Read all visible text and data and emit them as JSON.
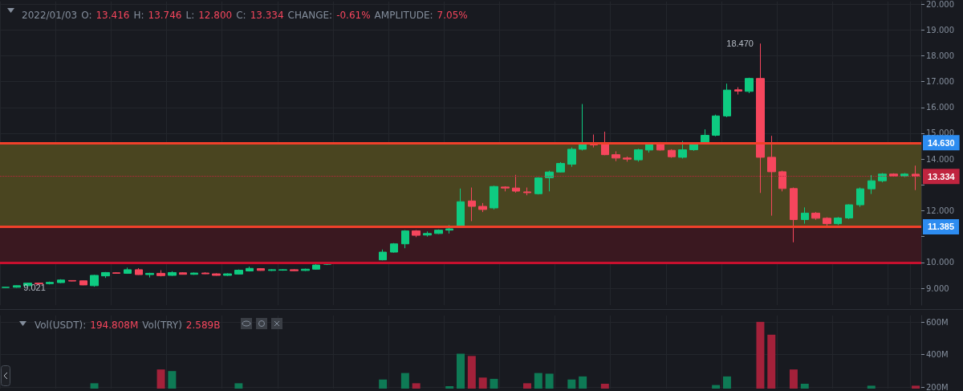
{
  "chart_data": [
    {
      "type": "candlestick",
      "title": "2022/01/03 O: 13.416 H: 13.746 L: 12.800 C: 13.334 CHANGE: -0.61% AMPLITUDE: 7.05%",
      "categories": [
        null,
        null,
        null,
        null,
        null,
        null,
        null,
        null,
        null,
        null,
        null,
        null,
        null,
        null,
        null,
        null,
        null,
        null,
        null,
        null,
        null,
        null,
        null,
        null,
        null,
        null,
        null,
        null,
        null,
        null,
        null,
        null,
        null,
        null,
        null,
        null,
        null,
        null,
        null,
        null,
        null,
        null,
        null,
        null,
        null,
        null,
        null,
        null,
        null,
        null,
        null,
        null,
        null,
        null,
        null,
        null,
        null,
        null,
        null,
        null,
        null,
        null,
        null,
        null,
        null,
        null,
        null,
        null,
        null,
        null,
        null,
        null,
        null,
        null,
        null,
        null,
        null,
        null,
        null,
        null,
        null,
        null,
        null
      ],
      "ohlc": [
        [
          9.03,
          9.05,
          9.025,
          9.04
        ],
        [
          9.04,
          9.11,
          9.021,
          9.1
        ],
        [
          9.1,
          9.22,
          9.08,
          9.2
        ],
        [
          9.2,
          9.22,
          9.16,
          9.17
        ],
        [
          9.18,
          9.26,
          9.15,
          9.23
        ],
        [
          9.22,
          9.35,
          9.2,
          9.32
        ],
        [
          9.3,
          9.31,
          9.27,
          9.28
        ],
        [
          9.29,
          9.3,
          9.12,
          9.13
        ],
        [
          9.1,
          9.52,
          9.06,
          9.5
        ],
        [
          9.48,
          9.63,
          9.4,
          9.61
        ],
        [
          9.6,
          9.62,
          9.57,
          9.58
        ],
        [
          9.58,
          9.8,
          9.56,
          9.72
        ],
        [
          9.72,
          9.78,
          9.52,
          9.53
        ],
        [
          9.53,
          9.6,
          9.42,
          9.58
        ],
        [
          9.58,
          9.7,
          9.46,
          9.49
        ],
        [
          9.5,
          9.66,
          9.48,
          9.61
        ],
        [
          9.6,
          9.62,
          9.53,
          9.54
        ],
        [
          9.54,
          9.61,
          9.52,
          9.59
        ],
        [
          9.59,
          9.62,
          9.55,
          9.56
        ],
        [
          9.56,
          9.58,
          9.49,
          9.5
        ],
        [
          9.5,
          9.58,
          9.48,
          9.56
        ],
        [
          9.55,
          9.73,
          9.53,
          9.7
        ],
        [
          9.67,
          9.84,
          9.65,
          9.77
        ],
        [
          9.76,
          9.78,
          9.68,
          9.69
        ],
        [
          9.69,
          9.74,
          9.67,
          9.72
        ],
        [
          9.7,
          9.74,
          9.68,
          9.72
        ],
        [
          9.72,
          9.74,
          9.67,
          9.68
        ],
        [
          9.69,
          9.76,
          9.67,
          9.74
        ],
        [
          9.74,
          9.93,
          9.72,
          9.9
        ],
        [
          9.93,
          10.0,
          9.9,
          9.96
        ],
        null,
        null,
        null,
        null,
        [
          10.1,
          10.5,
          10.08,
          10.4
        ],
        [
          10.4,
          10.75,
          10.38,
          10.72
        ],
        [
          10.72,
          11.25,
          10.55,
          11.22
        ],
        [
          11.22,
          11.25,
          10.98,
          11.05
        ],
        [
          11.06,
          11.2,
          11.0,
          11.12
        ],
        [
          11.12,
          11.28,
          11.1,
          11.25
        ],
        [
          11.25,
          11.45,
          11.12,
          11.3
        ],
        [
          11.35,
          12.86,
          11.35,
          12.35
        ],
        [
          12.38,
          12.9,
          11.6,
          12.17
        ],
        [
          12.17,
          12.3,
          11.95,
          12.05
        ],
        [
          12.11,
          12.97,
          12.05,
          12.94
        ],
        [
          12.92,
          12.95,
          12.75,
          12.88
        ],
        [
          12.88,
          13.39,
          12.7,
          12.76
        ],
        [
          12.73,
          12.9,
          12.6,
          12.7
        ],
        [
          12.66,
          13.3,
          12.63,
          13.27
        ],
        [
          13.28,
          13.55,
          12.75,
          13.5
        ],
        [
          13.5,
          13.88,
          13.48,
          13.83
        ],
        [
          13.8,
          14.45,
          13.7,
          14.38
        ],
        [
          14.38,
          16.13,
          14.33,
          14.57
        ],
        [
          14.6,
          14.95,
          14.45,
          14.55
        ],
        [
          14.58,
          15.06,
          14.15,
          14.17
        ],
        [
          14.17,
          14.3,
          13.92,
          14.04
        ],
        [
          14.04,
          14.1,
          13.9,
          14.0
        ],
        [
          13.97,
          14.4,
          13.9,
          14.36
        ],
        [
          14.35,
          14.65,
          14.25,
          14.57
        ],
        [
          14.58,
          14.66,
          14.33,
          14.35
        ],
        [
          14.34,
          14.38,
          14.05,
          14.09
        ],
        [
          14.07,
          14.7,
          14.02,
          14.36
        ],
        [
          14.36,
          14.65,
          14.32,
          14.57
        ],
        [
          14.65,
          15.15,
          14.6,
          14.92
        ],
        [
          14.92,
          15.72,
          14.88,
          15.67
        ],
        [
          15.67,
          16.92,
          15.62,
          16.67
        ],
        [
          16.68,
          16.78,
          16.5,
          16.63
        ],
        [
          16.62,
          17.15,
          16.55,
          17.12
        ],
        [
          17.12,
          18.47,
          12.69,
          14.07
        ],
        [
          14.07,
          14.9,
          11.81,
          13.51
        ],
        [
          13.51,
          13.55,
          12.75,
          12.86
        ],
        [
          12.86,
          12.9,
          10.78,
          11.66
        ],
        [
          11.66,
          12.13,
          11.5,
          11.91
        ],
        [
          11.91,
          11.95,
          11.65,
          11.71
        ],
        [
          11.71,
          11.75,
          11.4,
          11.5
        ],
        [
          11.5,
          11.76,
          11.45,
          11.72
        ],
        [
          11.72,
          12.25,
          11.68,
          12.23
        ],
        [
          12.23,
          12.9,
          12.15,
          12.85
        ],
        [
          12.85,
          13.38,
          12.65,
          13.16
        ],
        [
          13.16,
          13.46,
          13.1,
          13.42
        ],
        [
          13.42,
          13.45,
          13.32,
          13.34
        ],
        [
          13.34,
          13.46,
          13.3,
          13.42
        ],
        [
          13.416,
          13.746,
          12.8,
          13.334
        ]
      ],
      "colors": [
        "#0ecb81",
        "#0ecb81",
        "#0ecb81",
        "#f6465d",
        "#0ecb81",
        "#0ecb81",
        "#f6465d",
        "#f6465d",
        "#0ecb81",
        "#0ecb81",
        "#f6465d",
        "#0ecb81",
        "#f6465d",
        "#0ecb81",
        "#f6465d",
        "#0ecb81",
        "#f6465d",
        "#0ecb81",
        "#f6465d",
        "#f6465d",
        "#0ecb81",
        "#0ecb81",
        "#0ecb81",
        "#f6465d",
        "#0ecb81",
        "#0ecb81",
        "#f6465d",
        "#0ecb81",
        "#0ecb81",
        "#0ecb81",
        null,
        null,
        null,
        null,
        "#0ecb81",
        "#0ecb81",
        "#0ecb81",
        "#f6465d",
        "#0ecb81",
        "#0ecb81",
        "#0ecb81",
        "#0ecb81",
        "#f6465d",
        "#f6465d",
        "#0ecb81",
        "#f6465d",
        "#f6465d",
        "#f6465d",
        "#0ecb81",
        "#0ecb81",
        "#0ecb81",
        "#0ecb81",
        "#0ecb81",
        "#f6465d",
        "#f6465d",
        "#f6465d",
        "#f6465d",
        "#0ecb81",
        "#0ecb81",
        "#f6465d",
        "#f6465d",
        "#0ecb81",
        "#0ecb81",
        "#0ecb81",
        "#0ecb81",
        "#0ecb81",
        "#f6465d",
        "#0ecb81",
        "#f6465d",
        "#f6465d",
        "#f6465d",
        "#f6465d",
        "#0ecb81",
        "#f6465d",
        "#f6465d",
        "#0ecb81",
        "#0ecb81",
        "#0ecb81",
        "#0ecb81",
        "#0ecb81",
        "#f6465d",
        "#0ecb81",
        "#f6465d"
      ],
      "ylim": [
        8.35,
        20.1
      ],
      "yticks": [
        {
          "value": 9,
          "label": "9.000"
        },
        {
          "value": 10,
          "label": "10.000"
        },
        {
          "value": 11,
          "label": null
        },
        {
          "value": 12,
          "label": "12.000"
        },
        {
          "value": 13,
          "label": null
        },
        {
          "value": 14,
          "label": "14.000"
        },
        {
          "value": 15,
          "label": "15.000"
        },
        {
          "value": 16,
          "label": "16.000"
        },
        {
          "value": 17,
          "label": "17.000"
        },
        {
          "value": 18,
          "label": "18.000"
        },
        {
          "value": 19,
          "label": "19.000"
        },
        {
          "value": 20,
          "label": "20.000"
        }
      ],
      "bands": [
        {
          "axis": "y",
          "from": 11.385,
          "to": 14.63,
          "color": "#4a4520"
        },
        {
          "axis": "y",
          "from": 10,
          "to": 11.385,
          "color": "#3a1820"
        }
      ],
      "ref_lines": [
        {
          "axis": "y",
          "value": 14.63,
          "label": "14.630",
          "color": "#f0402a",
          "line_style": "solid"
        },
        {
          "axis": "y",
          "value": 11.385,
          "label": "11.385",
          "color": "#f0402a",
          "line_style": "solid"
        },
        {
          "axis": "y",
          "value": 10,
          "label": null,
          "color": "#c8102e",
          "line_style": "solid"
        },
        {
          "axis": "y",
          "value": 13.334,
          "label": "13.334",
          "color": "#c0243f",
          "line_style": "dotted"
        }
      ],
      "annotations": [
        "18.470",
        "9.021"
      ],
      "grid": true,
      "tick_labels": "y"
    },
    {
      "type": "bar",
      "title": "Vol(USDT): 194.808M Vol(TRY) 2.589B",
      "categories": [
        null,
        null,
        null,
        null,
        null,
        null,
        null,
        null,
        null,
        null,
        null,
        null,
        null,
        null,
        null,
        null,
        null,
        null,
        null,
        null,
        null,
        null,
        null,
        null,
        null,
        null,
        null,
        null,
        null,
        null,
        null,
        null,
        null,
        null,
        null,
        null,
        null,
        null,
        null,
        null,
        null,
        null,
        null,
        null,
        null,
        null,
        null,
        null,
        null,
        null,
        null,
        null,
        null,
        null,
        null,
        null,
        null,
        null,
        null,
        null,
        null,
        null,
        null,
        null,
        null,
        null,
        null,
        null,
        null,
        null,
        null,
        null,
        null,
        null,
        null,
        null,
        null,
        null,
        null,
        null,
        null,
        null,
        null
      ],
      "values": [
        null,
        null,
        null,
        null,
        null,
        null,
        null,
        null,
        223,
        null,
        null,
        null,
        null,
        null,
        308,
        298,
        null,
        null,
        null,
        null,
        null,
        223,
        null,
        null,
        null,
        null,
        null,
        null,
        null,
        null,
        null,
        null,
        null,
        null,
        246,
        null,
        286,
        223,
        null,
        null,
        205,
        405,
        391,
        258,
        250,
        null,
        null,
        223,
        286,
        282,
        null,
        246,
        265,
        null,
        220,
        null,
        null,
        null,
        null,
        null,
        null,
        null,
        null,
        null,
        212,
        265,
        null,
        null,
        601,
        522,
        null,
        308,
        220,
        null,
        null,
        null,
        null,
        null,
        208,
        null,
        null,
        null,
        208
      ],
      "colors": [
        "#0e7a55",
        "#0e7a55",
        "#0e7a55",
        "#a3213a",
        "#0e7a55",
        "#0e7a55",
        "#a3213a",
        "#a3213a",
        "#0e7a55",
        "#0e7a55",
        "#a3213a",
        "#0e7a55",
        "#a3213a",
        "#0e7a55",
        "#a3213a",
        "#0e7a55",
        "#a3213a",
        "#0e7a55",
        "#a3213a",
        "#a3213a",
        "#0e7a55",
        "#0e7a55",
        "#0e7a55",
        "#a3213a",
        "#0e7a55",
        "#0e7a55",
        "#a3213a",
        "#0e7a55",
        "#0e7a55",
        "#0e7a55",
        "#0e7a55",
        "#0e7a55",
        "#0e7a55",
        "#0e7a55",
        "#0e7a55",
        "#0e7a55",
        "#0e7a55",
        "#a3213a",
        "#0e7a55",
        "#0e7a55",
        "#0e7a55",
        "#0e7a55",
        "#a3213a",
        "#a3213a",
        "#0e7a55",
        "#a3213a",
        "#a3213a",
        "#a3213a",
        "#0e7a55",
        "#0e7a55",
        "#0e7a55",
        "#0e7a55",
        "#0e7a55",
        "#a3213a",
        "#a3213a",
        "#a3213a",
        "#a3213a",
        "#0e7a55",
        "#0e7a55",
        "#a3213a",
        "#a3213a",
        "#0e7a55",
        "#0e7a55",
        "#0e7a55",
        "#0e7a55",
        "#0e7a55",
        "#a3213a",
        "#0e7a55",
        "#a3213a",
        "#a3213a",
        "#a3213a",
        "#a3213a",
        "#0e7a55",
        "#a3213a",
        "#a3213a",
        "#0e7a55",
        "#0e7a55",
        "#0e7a55",
        "#0e7a55",
        "#0e7a55",
        "#a3213a",
        "#0e7a55",
        "#a3213a"
      ],
      "ylim": [
        190,
        640
      ],
      "yticks": [
        {
          "value": 200,
          "label": "200M"
        },
        {
          "value": 400,
          "label": "400M"
        },
        {
          "value": 600,
          "label": "600M"
        }
      ],
      "grid": true,
      "tick_labels": "y"
    }
  ]
}
